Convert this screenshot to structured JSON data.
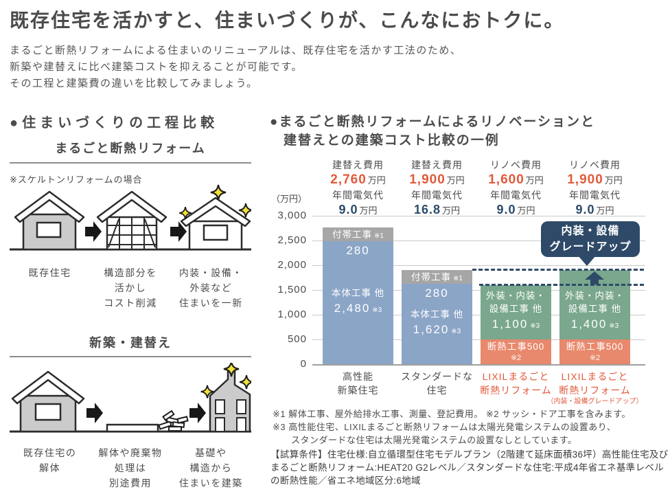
{
  "page": {
    "title": "既存住宅を活かすと、住まいづくりが、こんなにおトクに。",
    "intro": [
      "まるごと断熱リフォームによる住まいのリニューアルは、既存住宅を活かす工法のため、",
      "新築や建替えに比べ建築コストを抑えることが可能です。",
      "その工程と建築費の違いを比較してみましょう。"
    ]
  },
  "process": {
    "heading": "●住まいづくりの工程比較",
    "reform": {
      "title": "まるごと断熱リフォーム",
      "note": "※スケルトンリフォームの場合",
      "steps": [
        [
          "既存住宅"
        ],
        [
          "構造部分を",
          "活かし",
          "コスト削減"
        ],
        [
          "内装・設備・",
          "外装など",
          "住まいを一新"
        ]
      ]
    },
    "rebuild": {
      "title": "新築・建替え",
      "steps": [
        [
          "既存住宅の",
          "解体"
        ],
        [
          "解体や廃棄物",
          "処理は",
          "別途費用"
        ],
        [
          "基礎や",
          "構造から",
          "住まいを建築"
        ]
      ]
    }
  },
  "chart_section": {
    "heading_line1": "●まるごと断熱リフォームによるリノベーションと",
    "heading_line2": "建替えとの建築コスト比較の一例"
  },
  "chart_data": {
    "type": "bar",
    "stacked": true,
    "title": "まるごと断熱リフォームによるリノベーションと建替えとの建築コスト比較の一例",
    "unit": "万円",
    "ylim": [
      0,
      3000
    ],
    "y_axis_label": "（万円）",
    "yticks": [
      {
        "v": 0,
        "label": "0"
      },
      {
        "v": 500,
        "label": "500"
      },
      {
        "v": 1000,
        "label": "1,000"
      },
      {
        "v": 1500,
        "label": "1,500"
      },
      {
        "v": 2000,
        "label": "2,000"
      },
      {
        "v": 2500,
        "label": "2,500"
      },
      {
        "v": 3000,
        "label": "3,000"
      }
    ],
    "categories": [
      "高性能新築住宅",
      "スタンダードな住宅",
      "LIXILまるごと断熱リフォーム",
      "LIXILまるごと断熱リフォーム（内装・設備グレードアップ）"
    ],
    "bars": [
      {
        "total": 2760,
        "header": {
          "cost_label": "建替え費用",
          "cost_value": "2,760",
          "cost_unit": "万円",
          "elec_label": "年間電気代",
          "elec_value": "9.0",
          "elec_unit": "万円"
        },
        "axis_lines": [
          "高性能",
          "新築住宅"
        ],
        "axis_color": "gray",
        "upgrade_arrow": false,
        "segments": [
          {
            "name": "本体工事 他",
            "value": 2480,
            "color_key": "blue",
            "label_mode": "center",
            "label_lines": [
              {
                "t": "本体工事 他",
                "cls": "name"
              },
              {
                "t": "2,480",
                "s": "※3",
                "cls": "val"
              }
            ]
          },
          {
            "name": "付帯工事",
            "value": 280,
            "color_key": "gray",
            "label_mode": "top",
            "label_lines": [
              {
                "t": "付帯工事",
                "s": "※1",
                "cls": "name"
              },
              {
                "t": "280",
                "cls": "val"
              }
            ]
          }
        ]
      },
      {
        "total": 1900,
        "header": {
          "cost_label": "建替え費用",
          "cost_value": "1,900",
          "cost_unit": "万円",
          "elec_label": "年間電気代",
          "elec_value": "16.8",
          "elec_unit": "万円"
        },
        "axis_lines": [
          "スタンダードな",
          "住宅"
        ],
        "axis_color": "gray",
        "upgrade_arrow": false,
        "segments": [
          {
            "name": "本体工事 他",
            "value": 1620,
            "color_key": "blue",
            "label_mode": "center",
            "label_lines": [
              {
                "t": "本体工事 他",
                "cls": "name"
              },
              {
                "t": "1,620",
                "s": "※3",
                "cls": "val"
              }
            ]
          },
          {
            "name": "付帯工事",
            "value": 280,
            "color_key": "gray",
            "label_mode": "top",
            "label_lines": [
              {
                "t": "付帯工事",
                "s": "※1",
                "cls": "name"
              },
              {
                "t": "280",
                "cls": "val"
              }
            ]
          }
        ]
      },
      {
        "total": 1600,
        "header": {
          "cost_label": "リノベ費用",
          "cost_value": "1,600",
          "cost_unit": "万円",
          "elec_label": "年間電気代",
          "elec_value": "9.0",
          "elec_unit": "万円"
        },
        "axis_lines": [
          "LIXILまるごと",
          "断熱リフォーム"
        ],
        "axis_color": "orange",
        "upgrade_arrow": false,
        "segments": [
          {
            "name": "断熱工事",
            "value": 500,
            "color_key": "salmon",
            "label_mode": "center",
            "label_lines": [
              {
                "t": "断熱工事500",
                "cls": "name"
              },
              {
                "t": "※2",
                "cls": "sub"
              }
            ]
          },
          {
            "name": "外装・内装・設備工事 他",
            "value": 1100,
            "color_key": "green",
            "label_mode": "center",
            "label_lines": [
              {
                "t": "外装・内装・",
                "cls": "name"
              },
              {
                "t": "設備工事 他",
                "cls": "name"
              },
              {
                "t": "1,100",
                "s": "※3",
                "cls": "val"
              }
            ]
          }
        ]
      },
      {
        "total": 1900,
        "header": {
          "cost_label": "リノベ費用",
          "cost_value": "1,900",
          "cost_unit": "万円",
          "elec_label": "年間電気代",
          "elec_value": "9.0",
          "elec_unit": "万円"
        },
        "axis_lines": [
          "LIXILまるごと",
          "断熱リフォーム",
          "（内装・設備グレードアップ）"
        ],
        "axis_color": "orange",
        "upgrade_arrow": true,
        "segments": [
          {
            "name": "断熱工事",
            "value": 500,
            "color_key": "salmon",
            "label_mode": "center",
            "label_lines": [
              {
                "t": "断熱工事500",
                "cls": "name"
              },
              {
                "t": "※2",
                "cls": "sub"
              }
            ]
          },
          {
            "name": "外装・内装・設備工事 他",
            "value": 1400,
            "color_key": "green",
            "label_mode": "center",
            "label_lines": [
              {
                "t": "外装・内装・",
                "cls": "name"
              },
              {
                "t": "設備工事 他",
                "cls": "name"
              },
              {
                "t": "1,400",
                "s": "※3",
                "cls": "val"
              }
            ]
          }
        ]
      }
    ],
    "dashed_levels": [
      1900,
      1600
    ],
    "callout": {
      "lines": [
        "内装・設備",
        "グレードアップ"
      ]
    },
    "legend_position": "none",
    "grid": true,
    "colors": {
      "blue": "#8ba5c7",
      "gray": "#a6a6a6",
      "green": "#7aa78d",
      "salmon": "#e8886c",
      "navy": "#2e4a68",
      "orange_text": "#e2593a",
      "navy_text": "#2b4a6b",
      "grid": "#c9c9c9"
    }
  },
  "footnotes": {
    "line1": "※1 解体工事、屋外給排水工事、測量、登記費用。 ※2 サッシ・ドア工事を含みます。",
    "line2": "※3 高性能住宅、LIXILまるごと断熱リフォームは太陽光発電システムの設置あり、",
    "line3": "スタンダードな住宅は太陽光発電システムの設置なしとしています。",
    "conditions": "【試算条件】住宅仕様:自立循環型住宅モデルプラン（2階建て延床面積36坪）高性能住宅及び まるごと断熱リフォーム:HEAT20 G2レベル／スタンダードな住宅:平成4年省エネ基準レベルの断熱性能／省エネ地域区分:6地域"
  }
}
